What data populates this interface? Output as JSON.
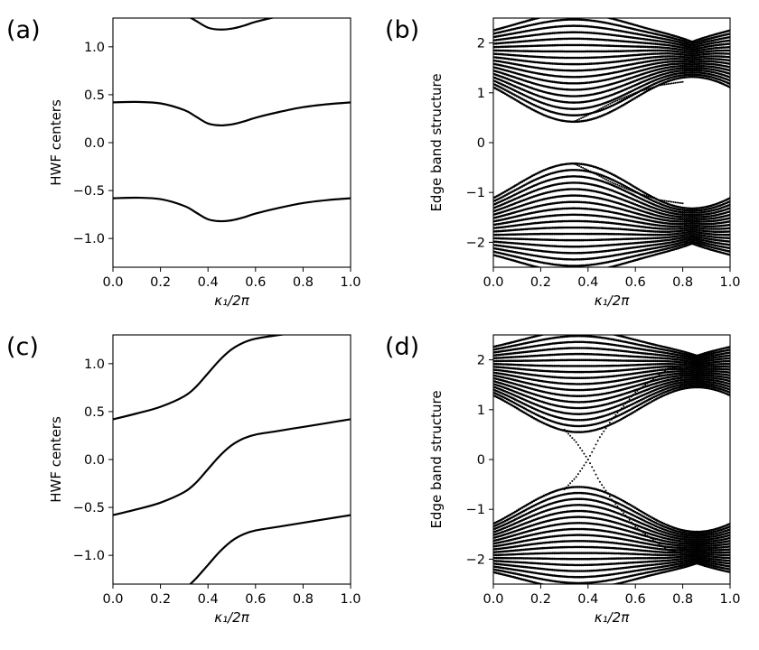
{
  "chart_data": [
    {
      "type": "line",
      "panel_label": "(a)",
      "xlabel": "κ₁/2π",
      "ylabel": "HWF centers",
      "xlim": [
        0.0,
        1.0
      ],
      "ylim": [
        -1.3,
        1.3
      ],
      "xticks": [
        "0.0",
        "0.2",
        "0.4",
        "0.6",
        "0.8",
        "1.0"
      ],
      "yticks": [
        "−1.0",
        "−0.5",
        "0.0",
        "0.5",
        "1.0"
      ],
      "series": [
        {
          "x": [
            0,
            0.1,
            0.2,
            0.3,
            0.35,
            0.4,
            0.45,
            0.5,
            0.55,
            0.6,
            0.7,
            0.8,
            0.9,
            1.0
          ],
          "y": [
            0.42,
            0.425,
            0.41,
            0.34,
            0.27,
            0.2,
            0.18,
            0.19,
            0.22,
            0.26,
            0.32,
            0.37,
            0.4,
            0.42
          ]
        },
        {
          "x": [
            0,
            0.1,
            0.2,
            0.3,
            0.35,
            0.4,
            0.45,
            0.5,
            0.55,
            0.6,
            0.7,
            0.8,
            0.9,
            1.0
          ],
          "y": [
            -0.58,
            -0.575,
            -0.59,
            -0.66,
            -0.73,
            -0.8,
            -0.82,
            -0.81,
            -0.78,
            -0.74,
            -0.68,
            -0.63,
            -0.6,
            -0.58
          ]
        },
        {
          "x": [
            0.3,
            0.35,
            0.4,
            0.45,
            0.5,
            0.55,
            0.6,
            0.7,
            0.8
          ],
          "y": [
            1.34,
            1.27,
            1.2,
            1.18,
            1.19,
            1.22,
            1.26,
            1.32,
            1.37
          ]
        }
      ]
    },
    {
      "type": "scatter",
      "panel_label": "(b)",
      "xlabel": "κ₁/2π",
      "ylabel": "Edge band structure",
      "xlim": [
        0.0,
        1.0
      ],
      "ylim": [
        -2.5,
        2.5
      ],
      "xticks": [
        "0.0",
        "0.2",
        "0.4",
        "0.6",
        "0.8",
        "1.0"
      ],
      "yticks": [
        "−2",
        "−1",
        "0",
        "1",
        "2"
      ],
      "band_gap_min": 0.42,
      "band_gap_min_x": 0.34,
      "band_touch_energy": 1.25,
      "band_touch_x": 0.52,
      "edge_states": [
        {
          "x": [
            0.34,
            0.42,
            0.5,
            0.6,
            0.7,
            0.8
          ],
          "y": [
            0.42,
            0.6,
            0.8,
            1.0,
            1.15,
            1.22
          ]
        },
        {
          "x": [
            0.34,
            0.42,
            0.5,
            0.6,
            0.7,
            0.8
          ],
          "y": [
            -0.42,
            -0.6,
            -0.8,
            -1.0,
            -1.15,
            -1.22
          ]
        }
      ]
    },
    {
      "type": "line",
      "panel_label": "(c)",
      "xlabel": "κ₁/2π",
      "ylabel": "HWF centers",
      "xlim": [
        0.0,
        1.0
      ],
      "ylim": [
        -1.3,
        1.3
      ],
      "xticks": [
        "0.0",
        "0.2",
        "0.4",
        "0.6",
        "0.8",
        "1.0"
      ],
      "yticks": [
        "−1.0",
        "−0.5",
        "0.0",
        "0.5",
        "1.0"
      ],
      "series": [
        {
          "x": [
            0,
            0.1,
            0.2,
            0.3,
            0.35,
            0.4,
            0.45,
            0.5,
            0.55,
            0.6,
            0.7,
            0.8,
            0.9,
            1.0
          ],
          "y": [
            0.42,
            0.48,
            0.55,
            0.66,
            0.76,
            0.9,
            1.04,
            1.15,
            1.22,
            1.26,
            1.3,
            1.33,
            1.36,
            1.38
          ]
        },
        {
          "x": [
            0,
            0.1,
            0.2,
            0.3,
            0.35,
            0.4,
            0.45,
            0.5,
            0.55,
            0.6,
            0.7,
            0.8,
            0.9,
            1.0
          ],
          "y": [
            -0.58,
            -0.52,
            -0.45,
            -0.34,
            -0.24,
            -0.1,
            0.04,
            0.15,
            0.22,
            0.26,
            0.3,
            0.34,
            0.38,
            0.42
          ]
        },
        {
          "x": [
            0.3,
            0.35,
            0.4,
            0.45,
            0.5,
            0.55,
            0.6,
            0.7,
            0.8,
            0.9,
            1.0
          ],
          "y": [
            -1.36,
            -1.24,
            -1.1,
            -0.96,
            -0.85,
            -0.78,
            -0.74,
            -0.7,
            -0.66,
            -0.62,
            -0.58
          ]
        }
      ]
    },
    {
      "type": "scatter",
      "panel_label": "(d)",
      "xlabel": "κ₁/2π",
      "ylabel": "Edge band structure",
      "xlim": [
        0.0,
        1.0
      ],
      "ylim": [
        -2.5,
        2.5
      ],
      "xticks": [
        "0.0",
        "0.2",
        "0.4",
        "0.6",
        "0.8",
        "1.0"
      ],
      "yticks": [
        "−2",
        "−1",
        "0",
        "1",
        "2"
      ],
      "band_gap_min": 0.55,
      "band_gap_min_x": 0.36,
      "edge_states": [
        {
          "x": [
            0.3,
            0.35,
            0.4,
            0.45,
            0.5,
            0.6,
            0.7,
            0.75,
            0.8
          ],
          "y": [
            -0.6,
            -0.35,
            0.0,
            0.45,
            0.8,
            1.35,
            1.7,
            1.85,
            1.8
          ]
        },
        {
          "x": [
            0.3,
            0.35,
            0.4,
            0.45,
            0.5,
            0.6,
            0.7,
            0.75,
            0.8
          ],
          "y": [
            0.6,
            0.35,
            0.0,
            -0.45,
            -0.8,
            -1.35,
            -1.7,
            -1.85,
            -1.8
          ]
        }
      ]
    }
  ]
}
